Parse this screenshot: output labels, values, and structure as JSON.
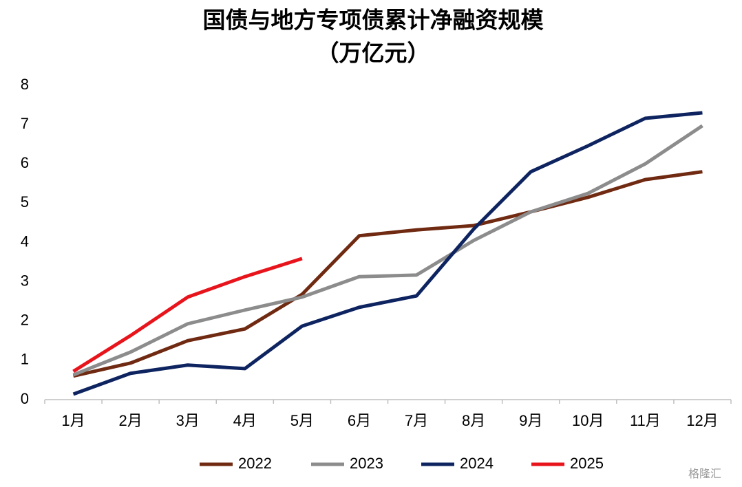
{
  "chart_data": {
    "type": "line",
    "title": "国债与地方专项债累计净融资规模",
    "subtitle": "（万亿元）",
    "categories": [
      "1月",
      "2月",
      "3月",
      "4月",
      "5月",
      "6月",
      "7月",
      "8月",
      "9月",
      "10月",
      "11月",
      "12月"
    ],
    "series": [
      {
        "name": "2022",
        "color": "#702a12",
        "values": [
          0.6,
          0.93,
          1.5,
          1.8,
          2.68,
          4.17,
          4.32,
          4.43,
          4.78,
          5.15,
          5.6,
          5.8
        ]
      },
      {
        "name": "2023",
        "color": "#8c8c8c",
        "values": [
          0.63,
          1.21,
          1.93,
          2.28,
          2.61,
          3.13,
          3.17,
          4.05,
          4.78,
          5.25,
          6.0,
          6.97
        ]
      },
      {
        "name": "2024",
        "color": "#0e2460",
        "values": [
          0.14,
          0.67,
          0.88,
          0.79,
          1.87,
          2.35,
          2.64,
          4.34,
          5.8,
          6.46,
          7.16,
          7.3
        ]
      },
      {
        "name": "2025",
        "color": "#e8141c",
        "values": [
          0.72,
          1.63,
          2.61,
          3.13,
          3.59,
          null,
          null,
          null,
          null,
          null,
          null,
          null
        ]
      }
    ],
    "ylim": [
      0,
      8
    ],
    "yticks": [
      0,
      1,
      2,
      3,
      4,
      5,
      6,
      7,
      8
    ],
    "grid": false,
    "legend": "bottom",
    "watermark": "格隆汇"
  }
}
